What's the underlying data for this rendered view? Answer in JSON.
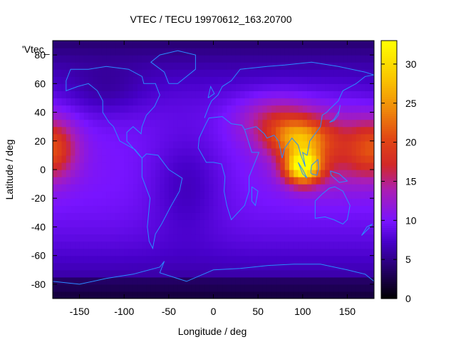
{
  "chart_data": {
    "type": "heatmap",
    "title": "VTEC / TECU 19970612_163.20700",
    "xlabel": "Longitude / deg",
    "ylabel": "Latitude / deg",
    "legend_key": "'Vtec_",
    "xlim": [
      -180,
      180
    ],
    "ylim": [
      -90,
      90
    ],
    "xticks": [
      -150,
      -100,
      -50,
      0,
      50,
      100,
      150
    ],
    "yticks": [
      -80,
      -60,
      -40,
      -20,
      0,
      20,
      40,
      60,
      80
    ],
    "colorbar": {
      "range": [
        0,
        33
      ],
      "ticks": [
        0,
        5,
        10,
        15,
        20,
        25,
        30
      ],
      "palette": "black-purple-red-orange-yellow"
    },
    "grid": false,
    "overlay": "coastlines",
    "colors": {
      "coastline": "#2a8cff",
      "low": "#000000",
      "mid": "#7a10ff",
      "high": "#ffff00"
    },
    "features": {
      "background_vtec_midlatitude": 9,
      "background_vtec_polar": 3,
      "peaks": [
        {
          "lon": 100,
          "lat": 0,
          "vtec": 32
        },
        {
          "lon": 100,
          "lat": 20,
          "vtec": 27
        },
        {
          "lon": -175,
          "lat": 15,
          "vtec": 18
        }
      ]
    }
  }
}
